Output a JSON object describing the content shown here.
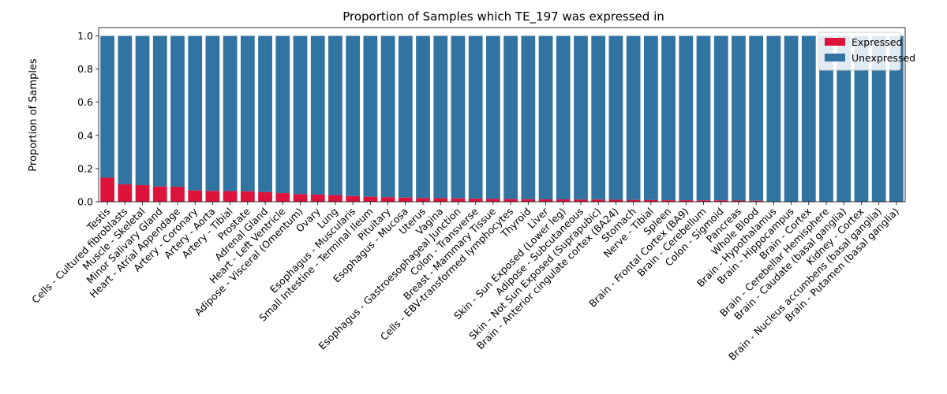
{
  "chart_data": {
    "type": "bar",
    "stacked": true,
    "title": "Proportion of Samples which TE_197 was expressed in",
    "xlabel": "",
    "ylabel": "Proportion of Samples",
    "ylim": [
      0,
      1.05
    ],
    "yticks": [
      "0.0",
      "0.2",
      "0.4",
      "0.6",
      "0.8",
      "1.0"
    ],
    "grid": false,
    "legend_position": "top-right",
    "categories": [
      "Testis",
      "Cells - Cultured fibroblasts",
      "Muscle - Skeletal",
      "Minor Salivary Gland",
      "Heart - Atrial Appendage",
      "Artery - Coronary",
      "Artery - Aorta",
      "Artery - Tibial",
      "Prostate",
      "Adrenal Gland",
      "Heart - Left Ventricle",
      "Adipose - Visceral (Omentum)",
      "Ovary",
      "Lung",
      "Esophagus - Muscularis",
      "Small Intestine - Terminal Ileum",
      "Pituitary",
      "Esophagus - Mucosa",
      "Uterus",
      "Vagina",
      "Esophagus - Gastroesophageal Junction",
      "Colon - Transverse",
      "Breast - Mammary Tissue",
      "Cells - EBV-transformed lymphocytes",
      "Thyroid",
      "Liver",
      "Skin - Sun Exposed (Lower leg)",
      "Adipose - Subcutaneous",
      "Skin - Not Sun Exposed (Suprapubic)",
      "Brain - Anterior cingulate cortex (BA24)",
      "Stomach",
      "Nerve - Tibial",
      "Spleen",
      "Brain - Frontal Cortex (BA9)",
      "Brain - Cerebellum",
      "Colon - Sigmoid",
      "Pancreas",
      "Whole Blood",
      "Brain - Hypothalamus",
      "Brain - Hippocampus",
      "Brain - Cortex",
      "Brain - Cerebellar Hemisphere",
      "Brain - Caudate (basal ganglia)",
      "Kidney - Cortex",
      "Brain - Nucleus accumbens (basal ganglia)",
      "Brain - Putamen (basal ganglia)"
    ],
    "series": [
      {
        "name": "Expressed",
        "color": "#dc143c",
        "values": [
          0.145,
          0.105,
          0.1,
          0.092,
          0.09,
          0.068,
          0.065,
          0.064,
          0.063,
          0.058,
          0.052,
          0.046,
          0.043,
          0.04,
          0.034,
          0.03,
          0.027,
          0.025,
          0.022,
          0.021,
          0.02,
          0.018,
          0.017,
          0.016,
          0.015,
          0.014,
          0.014,
          0.013,
          0.013,
          0.012,
          0.011,
          0.01,
          0.009,
          0.009,
          0.008,
          0.008,
          0.007,
          0.006,
          0.0,
          0.0,
          0.0,
          0.0,
          0.0,
          0.0,
          0.0,
          0.0
        ]
      },
      {
        "name": "Unexpressed",
        "color": "#3274a1",
        "values": [
          0.855,
          0.895,
          0.9,
          0.908,
          0.91,
          0.932,
          0.935,
          0.936,
          0.937,
          0.942,
          0.948,
          0.954,
          0.957,
          0.96,
          0.966,
          0.97,
          0.973,
          0.975,
          0.978,
          0.979,
          0.98,
          0.982,
          0.983,
          0.984,
          0.985,
          0.986,
          0.986,
          0.987,
          0.987,
          0.988,
          0.989,
          0.99,
          0.991,
          0.991,
          0.992,
          0.992,
          0.993,
          0.994,
          1.0,
          1.0,
          1.0,
          1.0,
          1.0,
          1.0,
          1.0,
          1.0
        ]
      }
    ]
  }
}
